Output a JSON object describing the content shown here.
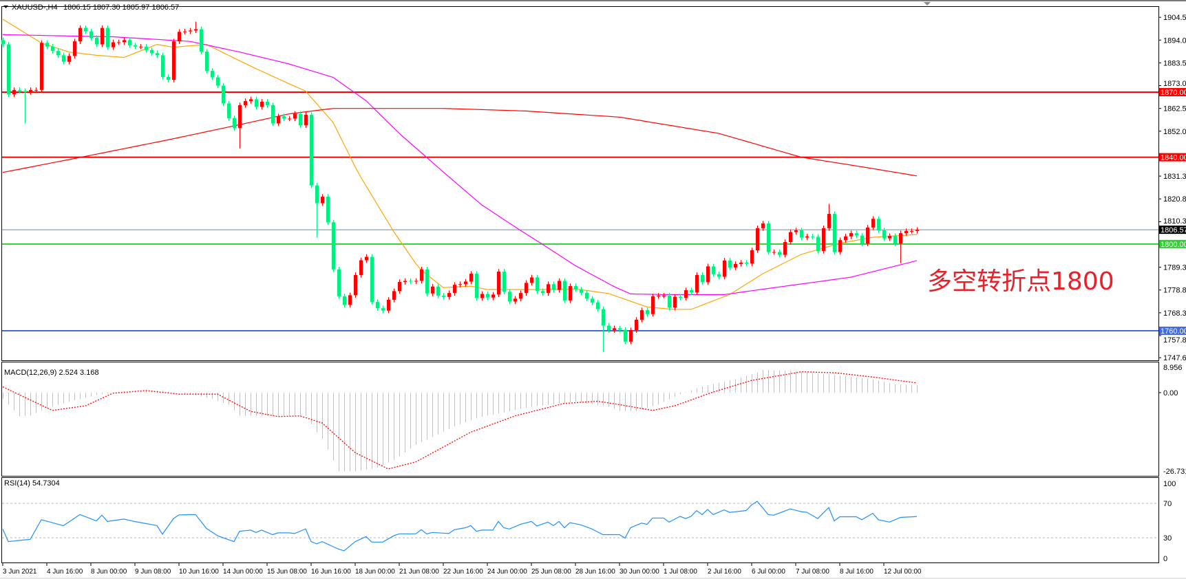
{
  "header": {
    "symbol": "XAUUSD-,H4",
    "ohlc": "1806.15 1807.30 1805.97 1806.57"
  },
  "annotation": "多空转折点1800",
  "colors": {
    "up": "#ff0000",
    "down": "#00f080",
    "ma_fast": "#ffa500",
    "ma_mid": "#ff00ff",
    "ma_slow": "#ff0000",
    "macd_hist": "#c0c0c0",
    "macd_signal": "#ff0000",
    "rsi": "#1e90ff",
    "level_1870": "#ff0000",
    "level_1840": "#ff0000",
    "level_1800": "#32cd32",
    "level_1760": "#4169e1",
    "current_price_line": "#778899"
  },
  "price_axis": {
    "ticks": [
      "1904.50",
      "1894.00",
      "1883.50",
      "1873.00",
      "1862.50",
      "1852.00",
      "1831.30",
      "1820.80",
      "1810.30",
      "1789.30",
      "1778.80",
      "1768.30",
      "1757.80",
      "1747.60"
    ]
  },
  "levels": [
    {
      "value": 1870.0,
      "label": "1870.00",
      "color_key": "level_1870"
    },
    {
      "value": 1840.0,
      "label": "1840.00",
      "color_key": "level_1840"
    },
    {
      "value": 1800.0,
      "label": "1800.00",
      "color_key": "level_1800"
    },
    {
      "value": 1760.0,
      "label": "1760.00",
      "color_key": "level_1760"
    }
  ],
  "current_price": {
    "value": 1806.57,
    "label": "1806.57"
  },
  "time_axis": [
    "3 Jun 2021",
    "4 Jun 16:00",
    "8 Jun 00:00",
    "9 Jun 08:00",
    "10 Jun 16:00",
    "14 Jun 00:00",
    "15 Jun 08:00",
    "16 Jun 16:00",
    "18 Jun 00:00",
    "21 Jun 08:00",
    "22 Jun 16:00",
    "24 Jun 00:00",
    "25 Jun 08:00",
    "28 Jun 16:00",
    "30 Jun 00:00",
    "1 Jul 08:00",
    "2 Jul 16:00",
    "6 Jul 00:00",
    "7 Jul 08:00",
    "8 Jul 16:00",
    "12 Jul 00:00"
  ],
  "macd": {
    "title": "MACD(12,26,9) 2.524 3.168",
    "ticks": [
      "8.956",
      "0.00",
      "-26.731"
    ]
  },
  "rsi": {
    "title": "RSI(14) 54.7304",
    "ticks": [
      "100",
      "70",
      "30",
      "0"
    ]
  },
  "chart_data": {
    "type": "candlestick",
    "symbol": "XAUUSD-",
    "timeframe": "H4",
    "ylim": [
      1747.6,
      1907.0
    ],
    "grid": false,
    "first_open": 1894.0,
    "close": [
      1892,
      1869,
      1871,
      1870.5,
      1870,
      1871,
      1871,
      1892.7,
      1891,
      1889,
      1887,
      1884,
      1886.7,
      1893.4,
      1899.6,
      1898,
      1895,
      1892,
      1899.6,
      1890.7,
      1893,
      1893,
      1894,
      1891.6,
      1891,
      1891,
      1889.4,
      1888,
      1887,
      1877,
      1875.7,
      1893.4,
      1897.8,
      1898,
      1898.4,
      1899,
      1888.7,
      1879.8,
      1876.8,
      1873,
      1864.8,
      1858,
      1853.4,
      1864,
      1865.9,
      1866.7,
      1863.2,
      1865.6,
      1864,
      1855.6,
      1858.9,
      1857.8,
      1857.8,
      1860,
      1854.7,
      1859.6,
      1827,
      1818.8,
      1821.8,
      1810,
      1788.3,
      1775.9,
      1772,
      1776.4,
      1785.7,
      1792.5,
      1794.1,
      1773.3,
      1770.4,
      1769.3,
      1774.3,
      1778.3,
      1782.5,
      1783,
      1782.8,
      1783,
      1788.3,
      1777.2,
      1780.4,
      1776.2,
      1775.6,
      1777.4,
      1781.2,
      1781.5,
      1782.7,
      1786.3,
      1775.1,
      1777,
      1775.3,
      1776.7,
      1787.3,
      1778,
      1773.5,
      1774.8,
      1777.4,
      1782.1,
      1784.6,
      1778.3,
      1777.4,
      1781.5,
      1778.8,
      1783,
      1774,
      1780.6,
      1779.1,
      1777.5,
      1774.8,
      1773,
      1770,
      1762.4,
      1760.3,
      1761.2,
      1760.5,
      1755,
      1760.3,
      1765.1,
      1769.5,
      1767.7,
      1775.9,
      1776.2,
      1776.2,
      1770.7,
      1775.7,
      1775.2,
      1778.7,
      1777.7,
      1785.7,
      1782.4,
      1789.7,
      1786.1,
      1784.9,
      1792.4,
      1789.2,
      1790.8,
      1791.4,
      1791,
      1797.1,
      1807.3,
      1809.5,
      1796.3,
      1796.3,
      1795,
      1800.9,
      1805.5,
      1806.3,
      1803,
      1803.5,
      1803.3,
      1796.8,
      1807.3,
      1813.9,
      1796.3,
      1801.8,
      1803.5,
      1805,
      1803.9,
      1800.2,
      1807.6,
      1811.6,
      1806.3,
      1802.6,
      1803.7,
      1800.2,
      1805,
      1806,
      1806,
      1806.57
    ],
    "extreme_wicks": [
      [
        4,
        "low",
        1855.6
      ],
      [
        35,
        "high",
        1902.5
      ],
      [
        43,
        "low",
        1844
      ],
      [
        57,
        "low",
        1803
      ],
      [
        109,
        "low",
        1750.3
      ],
      [
        150,
        "high",
        1818.5
      ],
      [
        163,
        "low",
        1791.2
      ]
    ],
    "moving_averages": [
      {
        "color_key": "ma_fast",
        "points_by_bar": [
          [
            0,
            1903.6
          ],
          [
            7,
            1892.7
          ],
          [
            12,
            1888.5
          ],
          [
            17,
            1887
          ],
          [
            22,
            1886
          ],
          [
            28,
            1892
          ],
          [
            31,
            1890.7
          ],
          [
            37,
            1892
          ],
          [
            45,
            1882
          ],
          [
            51,
            1875
          ],
          [
            55,
            1870.5
          ],
          [
            60,
            1856
          ],
          [
            64.5,
            1833
          ],
          [
            71,
            1805.7
          ],
          [
            75.6,
            1788.8
          ],
          [
            80,
            1779.9
          ],
          [
            85,
            1780.6
          ],
          [
            88,
            1779
          ],
          [
            97,
            1779
          ],
          [
            104,
            1779.3
          ],
          [
            110,
            1777.2
          ],
          [
            117,
            1771
          ],
          [
            121.6,
            1769.9
          ],
          [
            125,
            1769.9
          ],
          [
            132,
            1776.7
          ],
          [
            138,
            1786.3
          ],
          [
            145,
            1795.2
          ],
          [
            152,
            1800.3
          ],
          [
            158,
            1803.1
          ],
          [
            166,
            1804.4
          ]
        ]
      },
      {
        "color_key": "ma_mid",
        "points_by_bar": [
          [
            0,
            1896.5
          ],
          [
            20,
            1895.5
          ],
          [
            34,
            1893.4
          ],
          [
            43,
            1888.5
          ],
          [
            52,
            1883
          ],
          [
            60,
            1876.8
          ],
          [
            66,
            1866
          ],
          [
            72,
            1851
          ],
          [
            80,
            1833.2
          ],
          [
            87,
            1818
          ],
          [
            94,
            1806.3
          ],
          [
            98,
            1799.9
          ],
          [
            104,
            1790
          ],
          [
            111,
            1780.4
          ],
          [
            114,
            1777
          ],
          [
            120,
            1776.7
          ],
          [
            131,
            1776.7
          ],
          [
            141,
            1780.2
          ],
          [
            154,
            1784.7
          ],
          [
            166,
            1792.3
          ]
        ]
      },
      {
        "color_key": "ma_slow",
        "points_by_bar": [
          [
            0,
            1833
          ],
          [
            15,
            1840.4
          ],
          [
            30,
            1848
          ],
          [
            43,
            1855
          ],
          [
            52,
            1860
          ],
          [
            60,
            1862.5
          ],
          [
            80,
            1862.5
          ],
          [
            95,
            1861.3
          ],
          [
            112,
            1858.5
          ],
          [
            130,
            1851
          ],
          [
            145,
            1840
          ],
          [
            155,
            1836
          ],
          [
            166,
            1831.4
          ]
        ]
      }
    ],
    "macd_histogram_by_bar": [
      [
        0,
        -2
      ],
      [
        3,
        -7.7
      ],
      [
        5,
        -7.5
      ],
      [
        8,
        -5
      ],
      [
        12,
        -3
      ],
      [
        17,
        -0.8
      ],
      [
        22,
        0.5
      ],
      [
        28,
        0.8
      ],
      [
        34,
        -0.5
      ],
      [
        38,
        -2
      ],
      [
        41,
        -4
      ],
      [
        43,
        -7.6
      ],
      [
        55,
        -7.6
      ],
      [
        57,
        -13
      ],
      [
        58,
        -15
      ],
      [
        61,
        -25.7
      ],
      [
        64,
        -25.7
      ],
      [
        68,
        -24.5
      ],
      [
        71,
        -22
      ],
      [
        75,
        -17
      ],
      [
        82,
        -11
      ],
      [
        86,
        -8.3
      ],
      [
        96,
        -4.6
      ],
      [
        104,
        -3
      ],
      [
        110,
        -4.6
      ],
      [
        112,
        -6
      ],
      [
        115,
        -6
      ],
      [
        119,
        -3.9
      ],
      [
        123,
        -0.5
      ],
      [
        127,
        2
      ],
      [
        133,
        4.4
      ],
      [
        137,
        6.6
      ],
      [
        138,
        7.5
      ],
      [
        144,
        7
      ],
      [
        151,
        5.8
      ],
      [
        158,
        4.4
      ],
      [
        162,
        2.7
      ],
      [
        166,
        2.524
      ]
    ],
    "macd_signal_by_bar": [
      [
        0,
        1.9
      ],
      [
        9,
        -5.8
      ],
      [
        15,
        -4.3
      ],
      [
        20,
        -0.2
      ],
      [
        26,
        0.7
      ],
      [
        32,
        -0.5
      ],
      [
        39,
        -0.5
      ],
      [
        45,
        -6.1
      ],
      [
        50,
        -7.8
      ],
      [
        54,
        -7.6
      ],
      [
        58,
        -9.9
      ],
      [
        64,
        -19.6
      ],
      [
        70,
        -24.9
      ],
      [
        75,
        -22.6
      ],
      [
        85,
        -12.9
      ],
      [
        93,
        -7.6
      ],
      [
        102,
        -3.5
      ],
      [
        108,
        -2.8
      ],
      [
        112,
        -3.9
      ],
      [
        118,
        -5.8
      ],
      [
        122,
        -4.3
      ],
      [
        129,
        0.2
      ],
      [
        136,
        4
      ],
      [
        145,
        6.8
      ],
      [
        151,
        6.5
      ],
      [
        158,
        5.1
      ],
      [
        166,
        3.168
      ]
    ],
    "macd_range": [
      -26.731,
      8.956
    ],
    "rsi_by_bar": [
      [
        0,
        40.2
      ],
      [
        1,
        25.5
      ],
      [
        5,
        28.2
      ],
      [
        7,
        51
      ],
      [
        11,
        44
      ],
      [
        14,
        57
      ],
      [
        17,
        49.6
      ],
      [
        18,
        56.3
      ],
      [
        19,
        49
      ],
      [
        22,
        51.7
      ],
      [
        24,
        48.8
      ],
      [
        28,
        44.2
      ],
      [
        29,
        34.1
      ],
      [
        31,
        52.3
      ],
      [
        32,
        56.6
      ],
      [
        35,
        57
      ],
      [
        37,
        40.8
      ],
      [
        39,
        32.3
      ],
      [
        42,
        25.5
      ],
      [
        43,
        37.5
      ],
      [
        45,
        38.9
      ],
      [
        46,
        36.2
      ],
      [
        47,
        38.9
      ],
      [
        49,
        33.6
      ],
      [
        50,
        35.7
      ],
      [
        52,
        35.7
      ],
      [
        53,
        34.9
      ],
      [
        55,
        40.3
      ],
      [
        56,
        25.5
      ],
      [
        57,
        22.9
      ],
      [
        58,
        25.5
      ],
      [
        61,
        16.7
      ],
      [
        62,
        14.8
      ],
      [
        64,
        25.5
      ],
      [
        66,
        31.4
      ],
      [
        67,
        25
      ],
      [
        69,
        25
      ],
      [
        71,
        32.3
      ],
      [
        72,
        34.6
      ],
      [
        75,
        34.6
      ],
      [
        76,
        39.4
      ],
      [
        77,
        34.4
      ],
      [
        78,
        36.2
      ],
      [
        81,
        34.9
      ],
      [
        82,
        39.4
      ],
      [
        84,
        41.6
      ],
      [
        85,
        44.2
      ],
      [
        86,
        37.5
      ],
      [
        87,
        38.9
      ],
      [
        89,
        38.9
      ],
      [
        90,
        49
      ],
      [
        91,
        41.6
      ],
      [
        92,
        40.2
      ],
      [
        94,
        45.6
      ],
      [
        96,
        49
      ],
      [
        97,
        43.7
      ],
      [
        99,
        48.2
      ],
      [
        100,
        44.2
      ],
      [
        101,
        49
      ],
      [
        102,
        41.6
      ],
      [
        103,
        47.5
      ],
      [
        105,
        45
      ],
      [
        107,
        40.2
      ],
      [
        109,
        33.6
      ],
      [
        112,
        33.6
      ],
      [
        113,
        29.6
      ],
      [
        114,
        41.6
      ],
      [
        116,
        47
      ],
      [
        117,
        45.6
      ],
      [
        118,
        53
      ],
      [
        120,
        53
      ],
      [
        121,
        48.2
      ],
      [
        123,
        54.9
      ],
      [
        124,
        52.3
      ],
      [
        125,
        54.9
      ],
      [
        126,
        61.6
      ],
      [
        127,
        57
      ],
      [
        128,
        62.9
      ],
      [
        129,
        57
      ],
      [
        131,
        62.4
      ],
      [
        132,
        59.5
      ],
      [
        135,
        61.6
      ],
      [
        136,
        68.3
      ],
      [
        137,
        72.4
      ],
      [
        139,
        57
      ],
      [
        140,
        56.2
      ],
      [
        143,
        63.5
      ],
      [
        145,
        60.3
      ],
      [
        146,
        59.7
      ],
      [
        148,
        52.3
      ],
      [
        150,
        65.1
      ],
      [
        151,
        49.6
      ],
      [
        152,
        54.4
      ],
      [
        155,
        54.4
      ],
      [
        156,
        51
      ],
      [
        158,
        58.4
      ],
      [
        159,
        51
      ],
      [
        161,
        48.2
      ],
      [
        163,
        53.6
      ],
      [
        166,
        54.7304
      ]
    ],
    "rsi_levels": [
      70,
      30
    ]
  }
}
